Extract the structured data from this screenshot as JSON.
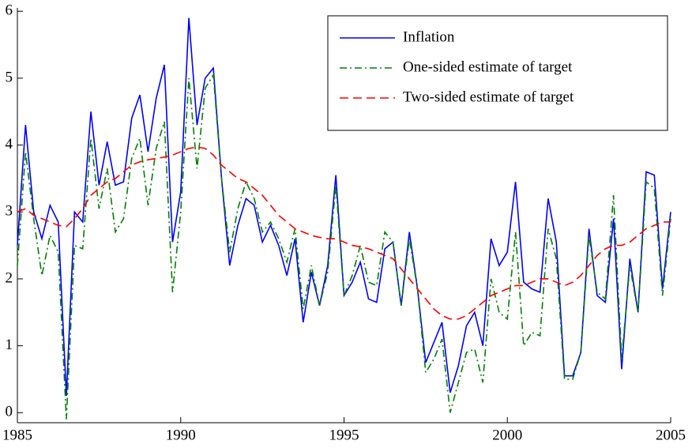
{
  "chart_data": {
    "type": "line",
    "x": [
      1985,
      1985.25,
      1985.5,
      1985.75,
      1986,
      1986.25,
      1986.5,
      1986.75,
      1987,
      1987.25,
      1987.5,
      1987.75,
      1988,
      1988.25,
      1988.5,
      1988.75,
      1989,
      1989.25,
      1989.5,
      1989.75,
      1990,
      1990.25,
      1990.5,
      1990.75,
      1991,
      1991.25,
      1991.5,
      1991.75,
      1992,
      1992.25,
      1992.5,
      1992.75,
      1993,
      1993.25,
      1993.5,
      1993.75,
      1994,
      1994.25,
      1994.5,
      1994.75,
      1995,
      1995.25,
      1995.5,
      1995.75,
      1996,
      1996.25,
      1996.5,
      1996.75,
      1997,
      1997.25,
      1997.5,
      1997.75,
      1998,
      1998.25,
      1998.5,
      1998.75,
      1999,
      1999.25,
      1999.5,
      1999.75,
      2000,
      2000.25,
      2000.5,
      2000.75,
      2001,
      2001.25,
      2001.5,
      2001.75,
      2002,
      2002.25,
      2002.5,
      2002.75,
      2003,
      2003.25,
      2003.5,
      2003.75,
      2004,
      2004.25,
      2004.5,
      2004.75,
      2005
    ],
    "series": [
      {
        "name": "Inflation",
        "color": "#0000ff",
        "dash": "solid",
        "values": [
          2.5,
          4.3,
          3.0,
          2.6,
          3.1,
          2.85,
          0.25,
          3.0,
          2.85,
          4.5,
          3.4,
          4.05,
          3.4,
          3.45,
          4.4,
          4.75,
          3.9,
          4.7,
          5.2,
          2.55,
          3.3,
          5.9,
          4.3,
          5.0,
          5.15,
          3.5,
          2.2,
          2.8,
          3.2,
          3.1,
          2.55,
          2.8,
          2.5,
          2.05,
          2.6,
          1.35,
          2.1,
          1.6,
          2.2,
          3.55,
          1.75,
          1.95,
          2.25,
          1.7,
          1.65,
          2.45,
          2.55,
          1.6,
          2.7,
          1.85,
          0.75,
          1.05,
          1.35,
          0.3,
          0.7,
          1.3,
          1.5,
          1.0,
          2.6,
          2.2,
          2.4,
          3.45,
          1.95,
          1.85,
          1.8,
          3.2,
          2.55,
          0.55,
          0.55,
          0.9,
          2.75,
          1.75,
          1.65,
          2.9,
          0.65,
          2.3,
          1.5,
          3.6,
          3.55,
          1.85,
          3.0
        ]
      },
      {
        "name": "One-sided estimate of target",
        "color": "#008000",
        "dash": "dashdot",
        "values": [
          2.2,
          3.9,
          2.9,
          2.05,
          2.65,
          2.4,
          -0.1,
          2.5,
          2.45,
          4.1,
          3.05,
          3.65,
          2.7,
          2.9,
          3.8,
          4.1,
          3.1,
          3.95,
          4.35,
          1.8,
          3.0,
          5.0,
          3.65,
          4.85,
          5.05,
          3.5,
          2.4,
          3.05,
          3.45,
          3.2,
          2.7,
          2.85,
          2.6,
          2.25,
          2.75,
          1.55,
          2.2,
          1.6,
          2.1,
          3.4,
          1.75,
          2.05,
          2.5,
          1.95,
          1.9,
          2.7,
          2.55,
          1.6,
          2.6,
          1.85,
          0.6,
          0.8,
          1.1,
          0.0,
          0.45,
          0.9,
          0.95,
          0.45,
          2.0,
          1.5,
          1.4,
          2.7,
          1.0,
          1.2,
          1.15,
          2.75,
          2.3,
          0.5,
          0.5,
          0.9,
          2.65,
          1.8,
          1.7,
          3.25,
          0.8,
          2.2,
          1.5,
          3.45,
          3.35,
          1.75,
          2.9
        ]
      },
      {
        "name": "Two-sided estimate of target",
        "color": "#ff0000",
        "dash": "dashed",
        "values": [
          3.0,
          3.05,
          2.95,
          2.9,
          2.85,
          2.8,
          2.78,
          2.9,
          3.05,
          3.25,
          3.35,
          3.45,
          3.5,
          3.6,
          3.7,
          3.75,
          3.78,
          3.8,
          3.82,
          3.85,
          3.9,
          3.95,
          3.97,
          3.95,
          3.85,
          3.7,
          3.6,
          3.5,
          3.45,
          3.35,
          3.25,
          3.1,
          2.95,
          2.85,
          2.75,
          2.7,
          2.65,
          2.62,
          2.6,
          2.6,
          2.55,
          2.5,
          2.48,
          2.45,
          2.4,
          2.35,
          2.3,
          2.15,
          2.0,
          1.85,
          1.7,
          1.55,
          1.45,
          1.4,
          1.4,
          1.45,
          1.55,
          1.65,
          1.75,
          1.8,
          1.85,
          1.9,
          1.9,
          1.95,
          2.0,
          2.0,
          1.95,
          1.9,
          1.95,
          2.05,
          2.2,
          2.35,
          2.45,
          2.5,
          2.5,
          2.55,
          2.65,
          2.75,
          2.8,
          2.85,
          2.85
        ]
      }
    ],
    "xlim": [
      1985,
      2005
    ],
    "xticks": [
      1985,
      1990,
      1995,
      2000,
      2005
    ],
    "ylim": [
      -0.15,
      6.05
    ],
    "yticks": [
      0,
      1,
      2,
      3,
      4,
      5,
      6
    ],
    "legend": "upper right"
  }
}
